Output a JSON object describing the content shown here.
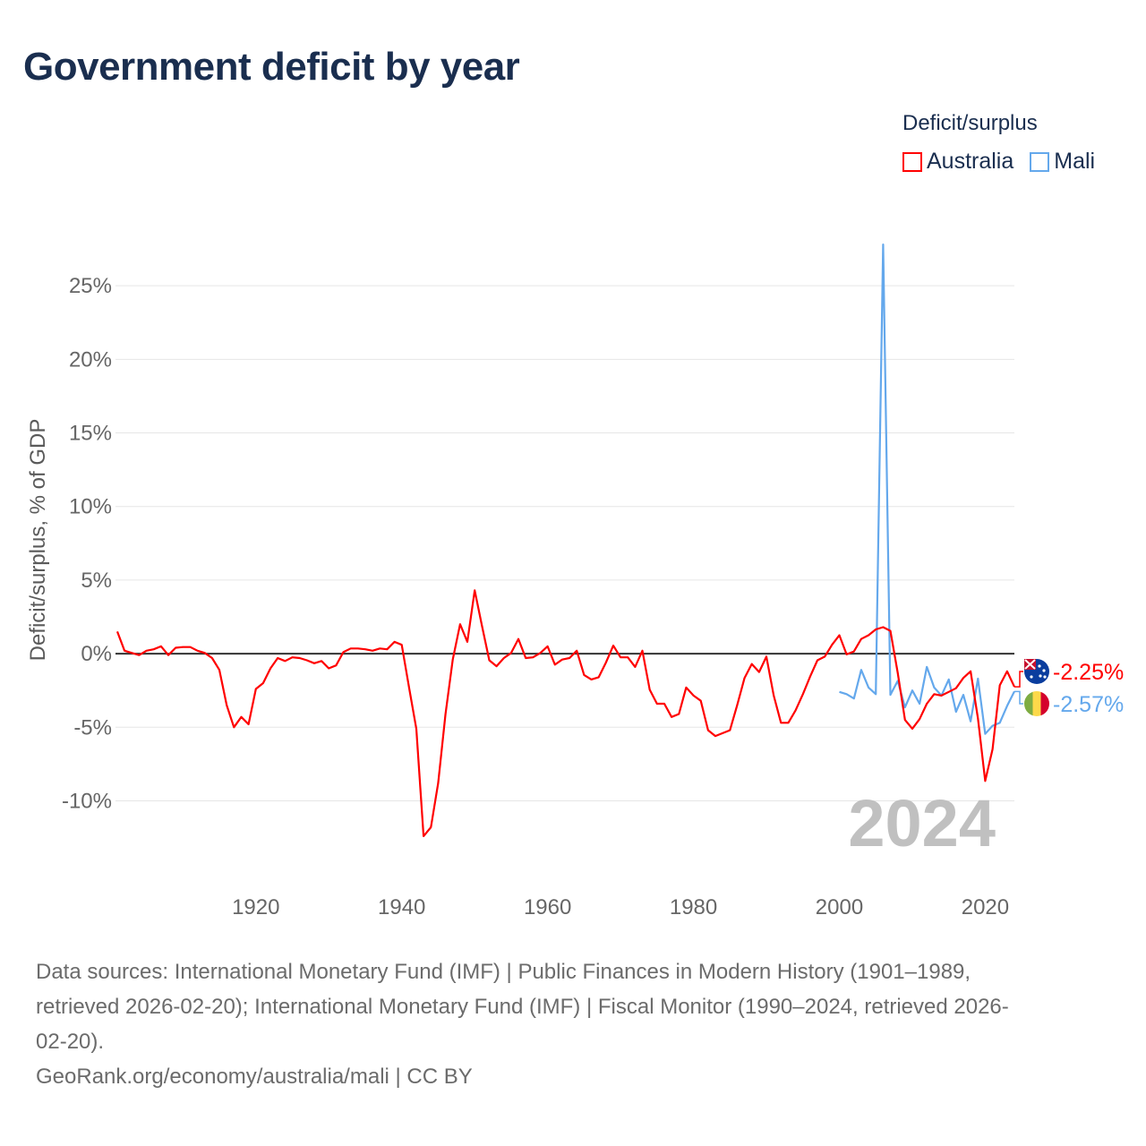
{
  "title": "Government deficit by year",
  "legend": {
    "title": "Deficit/surplus",
    "items": [
      {
        "label": "Australia",
        "color": "#ff0000"
      },
      {
        "label": "Mali",
        "color": "#64a8ec"
      }
    ]
  },
  "chart_data": {
    "type": "line",
    "title": "Government deficit by year",
    "xlabel": "",
    "ylabel": "Deficit/surplus, % of GDP",
    "xlim": [
      1901,
      2024
    ],
    "ylim": [
      -14.9,
      28.6
    ],
    "xticks": [
      1920,
      1940,
      1960,
      1980,
      2000,
      2020
    ],
    "yticks": [
      -10,
      -5,
      0,
      5,
      10,
      15,
      20,
      25
    ],
    "ytick_labels": [
      "-10%",
      "-5%",
      "0%",
      "5%",
      "10%",
      "15%",
      "20%",
      "25%"
    ],
    "grid": true,
    "legend_position": "top-right",
    "year_watermark": "2024",
    "series": [
      {
        "name": "Australia",
        "color": "#ff0000",
        "start_year": 1901,
        "end_label": "-2.25%",
        "flag": "australia-flag",
        "values": [
          1.5,
          0.2,
          0.05,
          -0.1,
          0.2,
          0.3,
          0.5,
          -0.1,
          0.4,
          0.45,
          0.45,
          0.2,
          0.05,
          -0.3,
          -1.1,
          -3.5,
          -5.0,
          -4.3,
          -4.8,
          -2.4,
          -2.0,
          -1.0,
          -0.3,
          -0.5,
          -0.25,
          -0.3,
          -0.45,
          -0.65,
          -0.5,
          -1.0,
          -0.8,
          0.1,
          0.35,
          0.35,
          0.3,
          0.2,
          0.35,
          0.3,
          0.8,
          0.6,
          -2.3,
          -5.1,
          -12.4,
          -11.8,
          -8.8,
          -4.1,
          -0.4,
          2.0,
          0.8,
          4.3,
          1.9,
          -0.45,
          -0.85,
          -0.3,
          0.05,
          1.0,
          -0.3,
          -0.25,
          0.05,
          0.5,
          -0.75,
          -0.4,
          -0.3,
          0.2,
          -1.45,
          -1.75,
          -1.6,
          -0.6,
          0.55,
          -0.25,
          -0.25,
          -0.9,
          0.2,
          -2.45,
          -3.4,
          -3.4,
          -4.3,
          -4.1,
          -2.3,
          -2.85,
          -3.2,
          -5.2,
          -5.6,
          -5.4,
          -5.2,
          -3.5,
          -1.65,
          -0.7,
          -1.25,
          -0.2,
          -2.85,
          -4.7,
          -4.7,
          -3.85,
          -2.75,
          -1.55,
          -0.45,
          -0.2,
          0.6,
          1.25,
          -0.05,
          0.15,
          1.0,
          1.25,
          1.65,
          1.8,
          1.55,
          -1.3,
          -4.5,
          -5.1,
          -4.45,
          -3.4,
          -2.75,
          -2.85,
          -2.6,
          -2.35,
          -1.65,
          -1.2,
          -4.4,
          -8.65,
          -6.5,
          -2.15,
          -1.2,
          -2.25
        ]
      },
      {
        "name": "Mali",
        "color": "#64a8ec",
        "start_year": 2000,
        "end_label": "-2.57%",
        "flag": "mali-flag",
        "values": [
          -2.6,
          -2.75,
          -3.05,
          -1.1,
          -2.3,
          -2.75,
          27.8,
          -2.8,
          -1.85,
          -3.65,
          -2.5,
          -3.4,
          -0.9,
          -2.3,
          -2.85,
          -1.75,
          -3.95,
          -2.8,
          -4.6,
          -1.7,
          -5.45,
          -4.9,
          -4.7,
          -3.55,
          -2.57
        ]
      }
    ]
  },
  "footer": {
    "source_lines": [
      "Data sources: International Monetary Fund (IMF) | Public Finances in Modern History (1901–1989,",
      "retrieved 2026-02-20); International Monetary Fund (IMF) | Fiscal Monitor (1990–2024, retrieved 2026-",
      "02-20)."
    ],
    "credit": "GeoRank.org/economy/australia/mali | CC BY"
  }
}
